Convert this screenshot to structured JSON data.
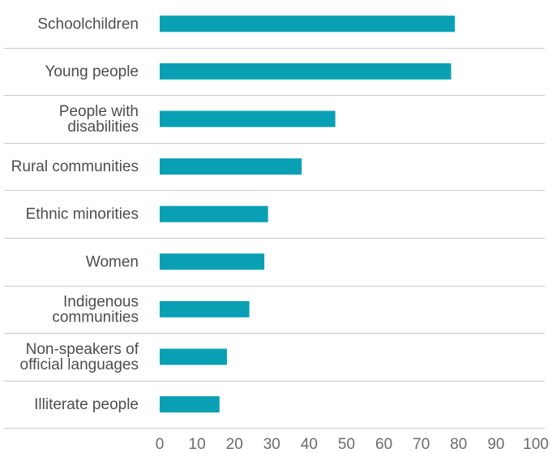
{
  "chart_data": {
    "type": "bar",
    "orientation": "horizontal",
    "categories": [
      [
        "Schoolchildren"
      ],
      [
        "Young people"
      ],
      [
        "People with",
        "disabilities"
      ],
      [
        "Rural communities"
      ],
      [
        "Ethnic minorities"
      ],
      [
        "Women"
      ],
      [
        "Indigenous",
        "communities"
      ],
      [
        "Non-speakers of",
        "official languages"
      ],
      [
        "Illiterate people"
      ]
    ],
    "values": [
      79,
      78,
      47,
      38,
      29,
      28,
      24,
      18,
      16
    ],
    "xlim": [
      0,
      100
    ],
    "xticks": [
      "0",
      "10",
      "20",
      "30",
      "40",
      "50",
      "60",
      "70",
      "80",
      "90",
      "100"
    ],
    "grid": false,
    "bar_color": "#0aa0b4",
    "title": "",
    "xlabel": "",
    "ylabel": ""
  }
}
